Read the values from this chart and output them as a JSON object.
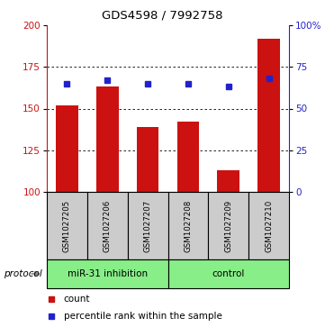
{
  "title": "GDS4598 / 7992758",
  "samples": [
    "GSM1027205",
    "GSM1027206",
    "GSM1027207",
    "GSM1027208",
    "GSM1027209",
    "GSM1027210"
  ],
  "counts": [
    152,
    163,
    139,
    142,
    113,
    192
  ],
  "percentiles": [
    65,
    67,
    65,
    65,
    63,
    68
  ],
  "ylim_left": [
    100,
    200
  ],
  "ylim_right": [
    0,
    100
  ],
  "yticks_left": [
    100,
    125,
    150,
    175,
    200
  ],
  "yticks_right": [
    0,
    25,
    50,
    75,
    100
  ],
  "ytick_labels_right": [
    "0",
    "25",
    "50",
    "75",
    "100%"
  ],
  "bar_color": "#cc1111",
  "dot_color": "#2222cc",
  "left_axis_color": "#cc1111",
  "right_axis_color": "#2222cc",
  "sample_box_color": "#cccccc",
  "legend_count_color": "#cc1111",
  "legend_dot_color": "#2222cc",
  "protocol_label": "protocol",
  "group1_label": "miR-31 inhibition",
  "group2_label": "control",
  "group_color": "#88ee88"
}
